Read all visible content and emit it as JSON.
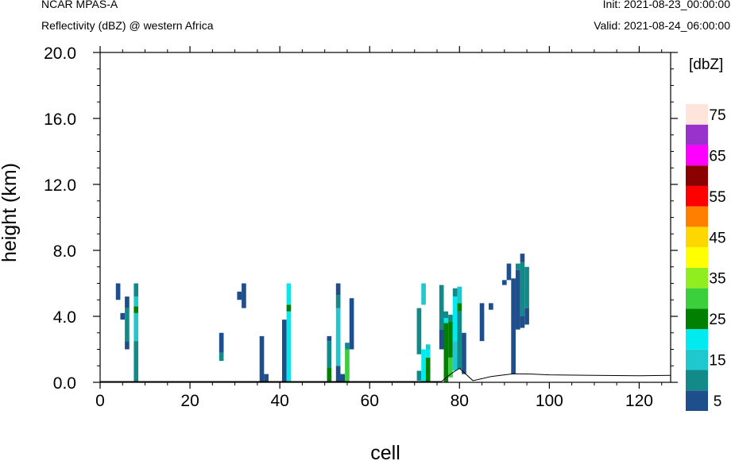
{
  "header": {
    "model": "NCAR MPAS-A",
    "field": "Reflectivity (dBZ) @ western Africa",
    "init": "Init: 2021-08-23_00:00:00",
    "valid": "Valid: 2021-08-24_06:00:00"
  },
  "chart_data": {
    "type": "heatmap",
    "xlabel": "cell",
    "ylabel": "height (km)",
    "xlim": [
      0,
      127
    ],
    "ylim": [
      0,
      20
    ],
    "xticks": [
      "0",
      "20",
      "40",
      "60",
      "80",
      "100",
      "120"
    ],
    "yticks": [
      "0.0",
      "4.0",
      "8.0",
      "12.0",
      "16.0",
      "20.0"
    ],
    "colorbar": {
      "unit": "[dbZ]",
      "levels": [
        5,
        10,
        15,
        20,
        25,
        30,
        35,
        40,
        45,
        50,
        55,
        60,
        65,
        70,
        75
      ],
      "labels": [
        "5",
        "15",
        "25",
        "35",
        "45",
        "55",
        "65",
        "75"
      ],
      "colors": [
        "#1f4e8c",
        "#138a8a",
        "#1fc8cc",
        "#00eaf0",
        "#008000",
        "#3ccf3c",
        "#90ee20",
        "#ffff00",
        "#ffd700",
        "#ff8000",
        "#ff0000",
        "#8b0000",
        "#ff00ff",
        "#9932cc",
        "#ffe4dc"
      ]
    },
    "cells": [
      {
        "x": 4,
        "bins": [
          [
            5.0,
            6.0,
            5
          ]
        ]
      },
      {
        "x": 5,
        "bins": [
          [
            3.8,
            4.2,
            5
          ]
        ]
      },
      {
        "x": 6,
        "bins": [
          [
            2.0,
            2.5,
            5
          ],
          [
            2.5,
            4.5,
            10
          ],
          [
            4.5,
            5.2,
            5
          ]
        ]
      },
      {
        "x": 8,
        "bins": [
          [
            0.0,
            2.5,
            10
          ],
          [
            2.5,
            4.2,
            15
          ],
          [
            4.2,
            4.6,
            25
          ],
          [
            4.6,
            5.2,
            15
          ],
          [
            5.2,
            6.0,
            10
          ]
        ]
      },
      {
        "x": 27,
        "bins": [
          [
            1.3,
            1.8,
            10
          ],
          [
            1.8,
            3.0,
            5
          ]
        ]
      },
      {
        "x": 31,
        "bins": [
          [
            5.0,
            5.5,
            5
          ]
        ]
      },
      {
        "x": 32,
        "bins": [
          [
            4.5,
            6.0,
            5
          ]
        ]
      },
      {
        "x": 36,
        "bins": [
          [
            0.0,
            2.8,
            5
          ]
        ]
      },
      {
        "x": 37,
        "bins": [
          [
            0.0,
            0.5,
            5
          ]
        ]
      },
      {
        "x": 41,
        "bins": [
          [
            0.0,
            3.8,
            5
          ]
        ]
      },
      {
        "x": 42,
        "bins": [
          [
            0.0,
            4.3,
            20
          ],
          [
            4.3,
            4.7,
            25
          ],
          [
            4.7,
            6.0,
            20
          ]
        ]
      },
      {
        "x": 51,
        "bins": [
          [
            0.0,
            0.9,
            25
          ],
          [
            0.9,
            2.5,
            10
          ],
          [
            2.5,
            2.8,
            5
          ]
        ]
      },
      {
        "x": 53,
        "bins": [
          [
            0.0,
            1.0,
            5
          ],
          [
            1.0,
            4.5,
            15
          ],
          [
            4.5,
            5.3,
            10
          ],
          [
            5.3,
            6.0,
            5
          ]
        ]
      },
      {
        "x": 54,
        "bins": [
          [
            0.0,
            0.5,
            5
          ]
        ]
      },
      {
        "x": 55,
        "bins": [
          [
            0.0,
            2.0,
            30
          ],
          [
            2.0,
            2.4,
            10
          ]
        ]
      },
      {
        "x": 56,
        "bins": [
          [
            2.0,
            5.1,
            5
          ]
        ]
      },
      {
        "x": 71,
        "bins": [
          [
            0.1,
            0.7,
            10
          ],
          [
            1.7,
            4.5,
            10
          ]
        ]
      },
      {
        "x": 72,
        "bins": [
          [
            0.0,
            2.0,
            20
          ],
          [
            4.7,
            6.0,
            15
          ]
        ]
      },
      {
        "x": 73,
        "bins": [
          [
            0.0,
            1.5,
            25
          ],
          [
            1.5,
            2.0,
            20
          ],
          [
            2.0,
            2.3,
            15
          ]
        ]
      },
      {
        "x": 76,
        "bins": [
          [
            3.2,
            5.9,
            10
          ],
          [
            2.0,
            3.2,
            5
          ]
        ]
      },
      {
        "x": 77,
        "bins": [
          [
            0.0,
            3.6,
            25
          ],
          [
            3.6,
            3.9,
            20
          ],
          [
            3.9,
            4.3,
            10
          ]
        ]
      },
      {
        "x": 78,
        "bins": [
          [
            0.3,
            1.5,
            30
          ],
          [
            1.5,
            3.7,
            25
          ],
          [
            3.7,
            4.1,
            10
          ]
        ]
      },
      {
        "x": 79,
        "bins": [
          [
            0.7,
            2.5,
            15
          ],
          [
            2.5,
            5.2,
            20
          ],
          [
            5.2,
            5.7,
            10
          ]
        ]
      },
      {
        "x": 80,
        "bins": [
          [
            0.8,
            4.3,
            10
          ],
          [
            4.3,
            4.8,
            25
          ],
          [
            4.8,
            5.8,
            15
          ]
        ]
      },
      {
        "x": 81,
        "bins": [
          [
            0.5,
            3.0,
            5
          ]
        ]
      },
      {
        "x": 85,
        "bins": [
          [
            2.5,
            4.8,
            5
          ]
        ]
      },
      {
        "x": 87,
        "bins": [
          [
            4.4,
            4.8,
            5
          ]
        ]
      },
      {
        "x": 90,
        "bins": [
          [
            5.9,
            6.2,
            5
          ]
        ]
      },
      {
        "x": 91,
        "bins": [
          [
            6.2,
            7.2,
            5
          ]
        ]
      },
      {
        "x": 92,
        "bins": [
          [
            0.5,
            6.3,
            5
          ]
        ]
      },
      {
        "x": 93,
        "bins": [
          [
            3.2,
            6.8,
            5
          ],
          [
            6.8,
            7.2,
            10
          ]
        ]
      },
      {
        "x": 94,
        "bins": [
          [
            3.3,
            4.0,
            5
          ],
          [
            4.0,
            7.3,
            10
          ],
          [
            7.3,
            7.8,
            5
          ]
        ]
      },
      {
        "x": 95,
        "bins": [
          [
            3.5,
            4.5,
            5
          ],
          [
            4.5,
            7.0,
            10
          ]
        ]
      }
    ],
    "terrain": [
      [
        0,
        0.05
      ],
      [
        76,
        0.05
      ],
      [
        78,
        0.5
      ],
      [
        80,
        0.85
      ],
      [
        83,
        0.1
      ],
      [
        87,
        0.35
      ],
      [
        90,
        0.45
      ],
      [
        92,
        0.52
      ],
      [
        96,
        0.5
      ],
      [
        100,
        0.45
      ],
      [
        110,
        0.42
      ],
      [
        120,
        0.4
      ],
      [
        127,
        0.42
      ]
    ]
  }
}
